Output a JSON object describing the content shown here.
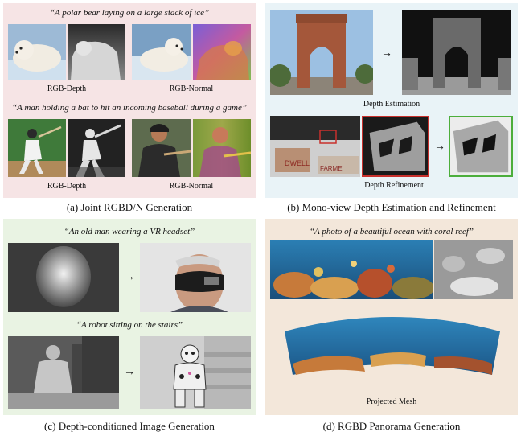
{
  "panel_a": {
    "prompt_top": "“A polar bear laying on a large stack of ice”",
    "prompt_bottom": "“A man holding a bat to hit an incoming baseball during a game”",
    "label_rgb_depth_1": "RGB-Depth",
    "label_rgb_normal_1": "RGB-Normal",
    "label_rgb_depth_2": "RGB-Depth",
    "label_rgb_normal_2": "RGB-Normal",
    "caption": "(a) Joint RGBD/N Generation"
  },
  "panel_b": {
    "label_depth_estimation": "Depth Estimation",
    "label_depth_refinement": "Depth Refinement",
    "caption": "(b) Mono-view Depth Estimation and Refinement"
  },
  "panel_c": {
    "prompt_top": "“An old man wearing a VR headset”",
    "prompt_bottom": "“A robot sitting on the stairs”",
    "caption": "(c) Depth-conditioned Image Generation"
  },
  "panel_d": {
    "prompt": "“A photo of a beautiful ocean with coral reef”",
    "label_projected_mesh": "Projected Mesh",
    "caption": "(d) RGBD Panorama Generation"
  },
  "colors": {
    "panel_a_bg": "#f6e4e5",
    "panel_b_bg": "#e9f3f7",
    "panel_c_bg": "#e9f3e3",
    "panel_d_bg": "#f3e7da",
    "refine_red": "#c8302c",
    "refine_green": "#4cae3c"
  }
}
